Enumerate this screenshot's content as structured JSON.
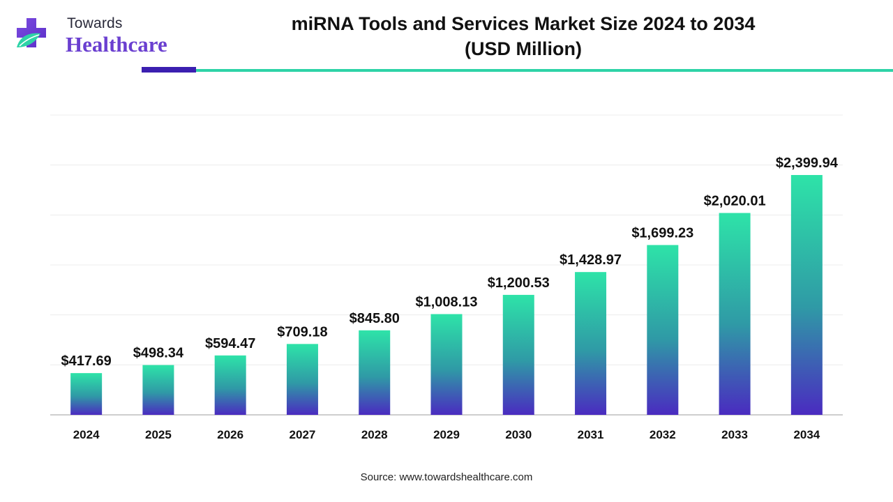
{
  "brand": {
    "line1": "Towards",
    "line2": "Healthcare",
    "icon": "medical-cross-leaf-icon",
    "colors": {
      "purple": "#6a3fd0",
      "teal": "#2ed3a7",
      "dark_blue": "#3b1fb0"
    }
  },
  "source": "Source: www.towardshealthcare.com",
  "chart_data": {
    "type": "bar",
    "title": [
      "miRNA Tools and Services Market Size 2024 to 2034",
      "(USD Million)"
    ],
    "xlabel": "",
    "ylabel": "",
    "categories": [
      "2024",
      "2025",
      "2026",
      "2027",
      "2028",
      "2029",
      "2030",
      "2031",
      "2032",
      "2033",
      "2034"
    ],
    "values": [
      417.69,
      498.34,
      594.47,
      709.18,
      845.8,
      1008.13,
      1200.53,
      1428.97,
      1699.23,
      2020.01,
      2399.94
    ],
    "value_labels": [
      "$417.69",
      "$498.34",
      "$594.47",
      "$709.18",
      "$845.80",
      "$1,008.13",
      "$1,200.53",
      "$1,428.97",
      "$1,699.23",
      "$2,020.01",
      "$2,399.94"
    ],
    "ylim": [
      0,
      3000
    ],
    "grid": true,
    "legend": "none",
    "bar_gradient": {
      "top": "#2ee3a8",
      "middle": "#2f9aa6",
      "bottom": "#4a2bc0"
    }
  }
}
